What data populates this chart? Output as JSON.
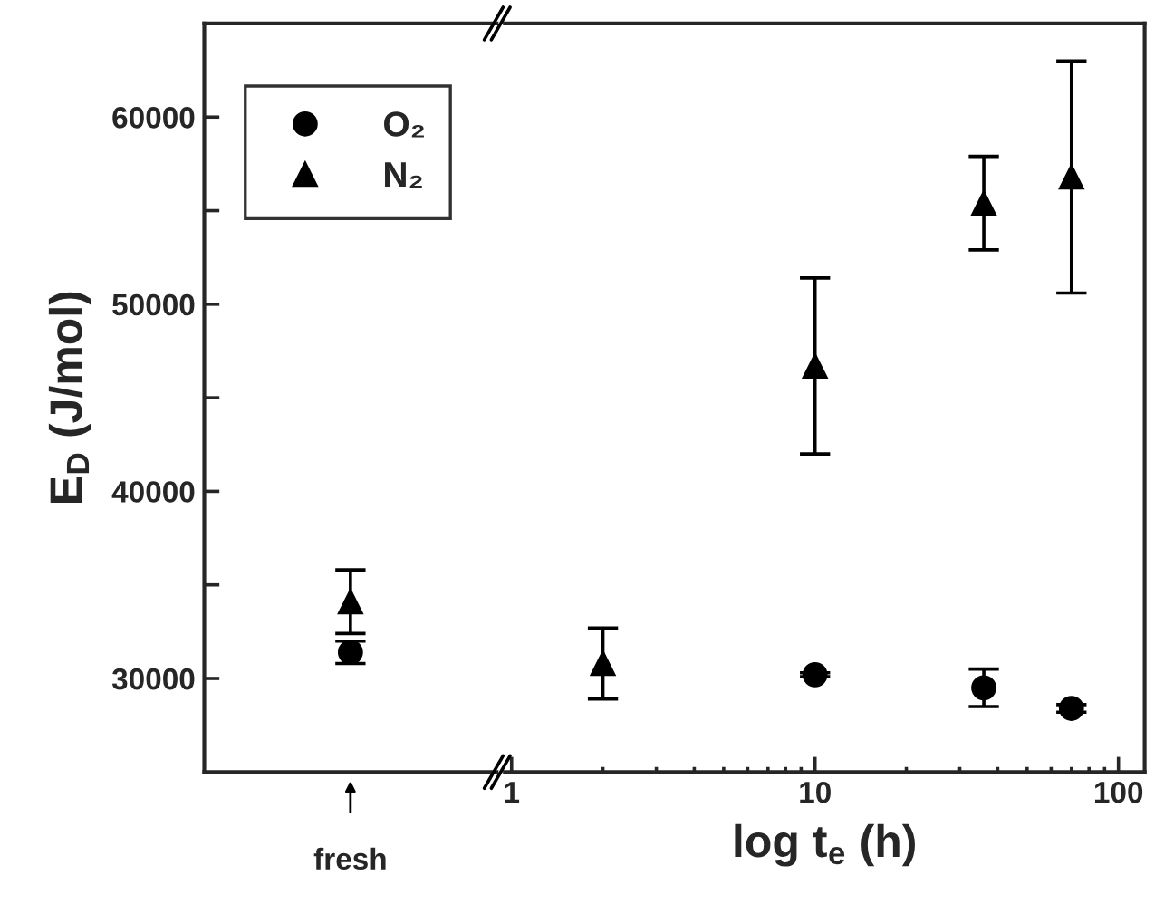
{
  "chart_data": [
    {
      "type": "scatter",
      "ylabel": "E$_{D}$ (J/mol)",
      "categories": [
        "fresh"
      ],
      "ylim": [
        25000,
        65000
      ],
      "yticks": [
        30000,
        {
          "value": 35000,
          "label": null
        },
        40000,
        {
          "value": 45000,
          "label": null
        },
        50000,
        {
          "value": 55000,
          "label": null
        },
        60000
      ],
      "legend": "top left",
      "series": [
        {
          "name": "O₂",
          "color": "#000000",
          "marker": "circle",
          "values": [
            31400
          ],
          "errors": [
            600
          ]
        },
        {
          "name": "N₂",
          "color": "#000000",
          "marker": "triangle",
          "values": [
            34100
          ],
          "errors": [
            1700
          ]
        }
      ]
    },
    {
      "type": "scatter",
      "xlabel": "log t$_{e}$ (h)",
      "log": "x",
      "xlim": [
        0.95,
        122
      ],
      "xticks": [
        1,
        10,
        100
      ],
      "ylim": [
        25000,
        65000
      ],
      "tick_labels": "x",
      "x": [
        2,
        10,
        36,
        70
      ],
      "series": [
        {
          "color": "#000000",
          "marker": "circle",
          "values": [
            null,
            30200,
            29500,
            28400
          ],
          "errors": [
            null,
            100,
            1000,
            200
          ]
        },
        {
          "color": "#000000",
          "marker": "triangle",
          "values": [
            30800,
            46700,
            55400,
            56800
          ],
          "errors": [
            1900,
            4700,
            2500,
            6200
          ]
        }
      ]
    }
  ]
}
